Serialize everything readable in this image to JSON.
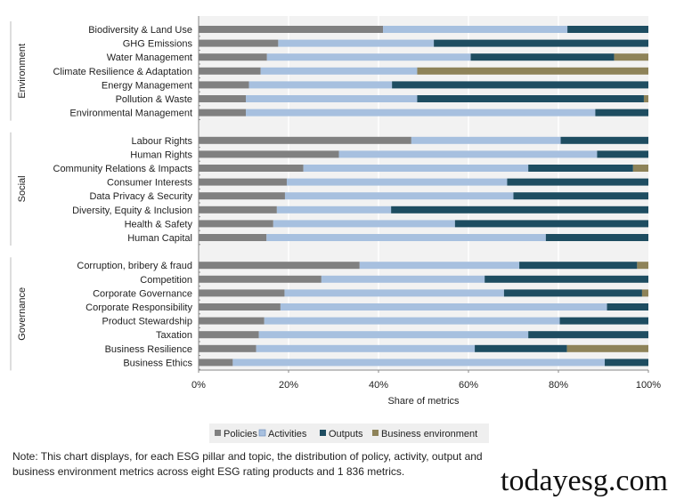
{
  "chart_data": {
    "type": "bar",
    "orientation": "horizontal",
    "stacked": true,
    "xlabel": "Share of metrics",
    "xlim": [
      0,
      100
    ],
    "xticks": [
      "0%",
      "20%",
      "40%",
      "60%",
      "80%",
      "100%"
    ],
    "grid": true,
    "legend_position": "bottom",
    "series_names": [
      "Policies",
      "Activities",
      "Outputs",
      "Business environment"
    ],
    "colors": [
      "#808080",
      "#a7c0df",
      "#1e4d61",
      "#8e8359"
    ],
    "groups": [
      {
        "name": "Environment",
        "topics": [
          {
            "label": "Biodiversity & Land Use",
            "values": [
              41.0,
              41.0,
              18.0,
              0
            ]
          },
          {
            "label": "GHG Emissions",
            "values": [
              17.7,
              34.6,
              47.7,
              0
            ]
          },
          {
            "label": "Water Management",
            "values": [
              15.2,
              45.3,
              31.9,
              7.6
            ]
          },
          {
            "label": "Climate Resilience & Adaptation",
            "values": [
              13.8,
              34.8,
              0,
              51.4
            ]
          },
          {
            "label": "Energy Management",
            "values": [
              11.2,
              31.8,
              57.0,
              0
            ]
          },
          {
            "label": "Pollution & Waste",
            "values": [
              10.5,
              38.1,
              50.4,
              1.0
            ]
          },
          {
            "label": "Environmental Management",
            "values": [
              10.5,
              77.7,
              11.8,
              0
            ]
          }
        ]
      },
      {
        "name": "Social",
        "topics": [
          {
            "label": "Labour Rights",
            "values": [
              47.3,
              33.2,
              19.5,
              0
            ]
          },
          {
            "label": "Human Rights",
            "values": [
              31.2,
              57.4,
              11.4,
              0
            ]
          },
          {
            "label": "Community Relations & Impacts",
            "values": [
              23.3,
              50.0,
              23.3,
              3.4
            ]
          },
          {
            "label": "Consumer Interests",
            "values": [
              19.6,
              49.0,
              31.4,
              0
            ]
          },
          {
            "label": "Data Privacy & Security",
            "values": [
              19.2,
              50.8,
              30.0,
              0
            ]
          },
          {
            "label": "Diversity, Equity & Inclusion",
            "values": [
              17.4,
              25.4,
              57.2,
              0
            ]
          },
          {
            "label": "Health & Safety",
            "values": [
              16.6,
              40.4,
              43.0,
              0
            ]
          },
          {
            "label": "Human Capital",
            "values": [
              15.1,
              62.1,
              22.8,
              0
            ]
          }
        ]
      },
      {
        "name": "Governance",
        "topics": [
          {
            "label": "Corruption, bribery & fraud",
            "values": [
              35.8,
              35.5,
              26.2,
              2.5
            ]
          },
          {
            "label": "Competition",
            "values": [
              27.3,
              36.3,
              36.4,
              0
            ]
          },
          {
            "label": "Corporate Governance",
            "values": [
              19.1,
              48.8,
              30.7,
              1.4
            ]
          },
          {
            "label": "Corporate Responsibility",
            "values": [
              18.2,
              72.6,
              9.2,
              0
            ]
          },
          {
            "label": "Product Stewardship",
            "values": [
              14.6,
              65.7,
              19.7,
              0
            ]
          },
          {
            "label": "Taxation",
            "values": [
              13.4,
              59.9,
              26.7,
              0
            ]
          },
          {
            "label": "Business Resilience",
            "values": [
              12.8,
              48.6,
              20.5,
              18.1
            ]
          },
          {
            "label": "Business Ethics",
            "values": [
              7.6,
              82.7,
              9.7,
              0
            ]
          }
        ]
      }
    ]
  },
  "note": "Note: This chart displays, for each ESG pillar and topic, the distribution of policy, activity, output and business environment metrics across eight ESG rating products and 1 836 metrics.",
  "watermark": "todayesg.com"
}
